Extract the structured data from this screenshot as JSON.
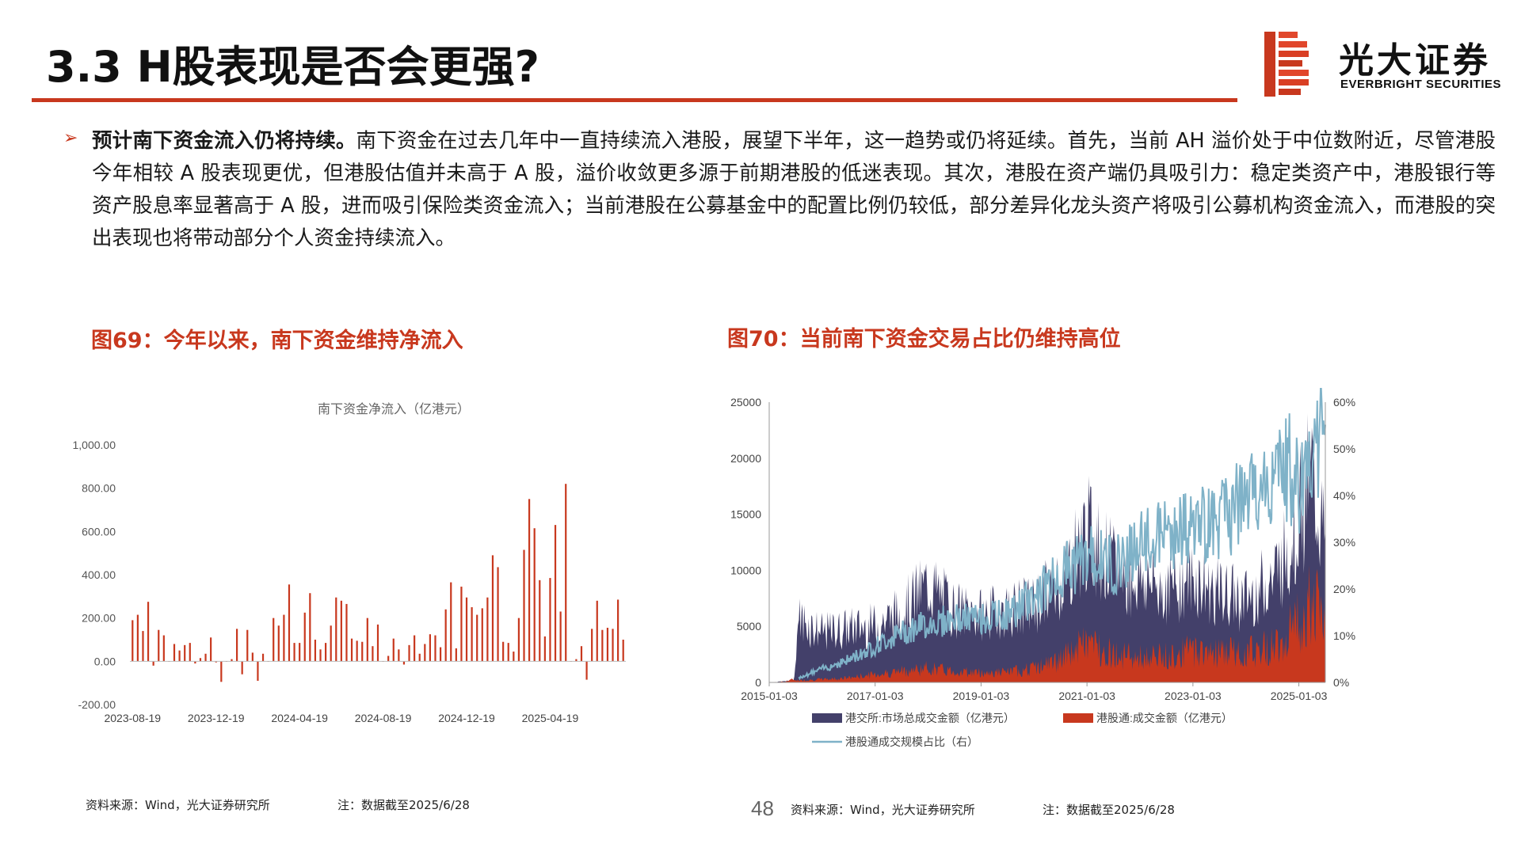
{
  "header": {
    "title": "3.3 H股表现是否会更强?",
    "logo_cn": "光大证券",
    "logo_en": "EVERBRIGHT SECURITIES"
  },
  "colors": {
    "accent": "#c8381e",
    "bar": "#c8381e",
    "navy": "#43406a",
    "ratio": "#7fb2c8"
  },
  "bullet": {
    "lead": "预计南下资金流入仍将持续。",
    "body": "南下资金在过去几年中一直持续流入港股，展望下半年，这一趋势或仍将延续。首先，当前 AH 溢价处于中位数附近，尽管港股今年相较 A 股表现更优，但港股估值并未高于 A 股，溢价收敛更多源于前期港股的低迷表现。其次，港股在资产端仍具吸引力：稳定类资产中，港股银行等资产股息率显著高于 A 股，进而吸引保险类资金流入；当前港股在公募基金中的配置比例仍较低，部分差异化龙头资产将吸引公募机构资金流入，而港股的突出表现也将带动部分个人资金持续流入。"
  },
  "figure69": {
    "caption": "图69：今年以来，南下资金维持净流入",
    "source": "资料来源：Wind，光大证券研究所",
    "note": "注：数据截至2025/6/28"
  },
  "figure70": {
    "caption": "图70：当前南下资金交易占比仍维持高位",
    "source": "资料来源：Wind，光大证券研究所",
    "note": "注：数据截至2025/6/28"
  },
  "page_number": "48",
  "chart_data": [
    {
      "type": "bar",
      "title": "南下资金净流入（亿港元）",
      "ylim": [
        -200,
        1000
      ],
      "yticks": [
        "-200.00",
        "0.00",
        "200.00",
        "400.00",
        "600.00",
        "800.00",
        "1,000.00"
      ],
      "ytick_values": [
        -200,
        0,
        200,
        400,
        600,
        800,
        1000
      ],
      "xticks": [
        "2023-08-19",
        "2023-12-19",
        "2024-04-19",
        "2024-08-19",
        "2024-12-19",
        "2025-04-19"
      ],
      "values": [
        190,
        215,
        140,
        275,
        -20,
        145,
        120,
        0,
        80,
        50,
        75,
        85,
        -10,
        15,
        35,
        110,
        -5,
        -95,
        0,
        10,
        150,
        -60,
        145,
        40,
        -90,
        35,
        0,
        200,
        165,
        215,
        355,
        85,
        85,
        225,
        315,
        100,
        55,
        85,
        165,
        295,
        280,
        265,
        105,
        95,
        90,
        200,
        70,
        170,
        0,
        25,
        105,
        55,
        -15,
        75,
        120,
        35,
        80,
        125,
        120,
        65,
        240,
        365,
        60,
        345,
        295,
        250,
        215,
        245,
        295,
        490,
        435,
        90,
        85,
        45,
        200,
        515,
        750,
        615,
        375,
        115,
        385,
        630,
        230,
        820,
        0,
        10,
        70,
        -85,
        150,
        280,
        145,
        155,
        150,
        285,
        100
      ]
    },
    {
      "type": "area",
      "series": [
        {
          "name": "港交所:市场总成交金额（亿港元）",
          "kind": "area"
        },
        {
          "name": "港股通:成交金额（亿港元）",
          "kind": "area"
        },
        {
          "name": "港股通成交规模占比（右）",
          "kind": "line",
          "axis": "right"
        }
      ],
      "y_left_ticks": [
        "0",
        "5000",
        "10000",
        "15000",
        "20000",
        "25000"
      ],
      "y_left_values": [
        0,
        5000,
        10000,
        15000,
        20000,
        25000
      ],
      "y_right_ticks": [
        "0%",
        "10%",
        "20%",
        "30%",
        "40%",
        "50%",
        "60%"
      ],
      "y_right_values": [
        0,
        10,
        20,
        30,
        40,
        50,
        60
      ],
      "xticks": [
        "2015-01-03",
        "2017-01-03",
        "2019-01-03",
        "2021-01-03",
        "2023-01-03",
        "2025-01-03"
      ],
      "xtick_years": [
        2015,
        2017,
        2019,
        2021,
        2023,
        2025
      ],
      "x_range": [
        2015.0,
        2025.5
      ],
      "total_anchors": [
        [
          2015.0,
          0
        ],
        [
          2015.45,
          400
        ],
        [
          2015.55,
          6200
        ],
        [
          2016.0,
          4800
        ],
        [
          2016.5,
          5200
        ],
        [
          2017.0,
          5500
        ],
        [
          2017.5,
          6800
        ],
        [
          2018.0,
          9500
        ],
        [
          2018.5,
          7000
        ],
        [
          2019.0,
          6500
        ],
        [
          2019.5,
          7000
        ],
        [
          2020.0,
          7500
        ],
        [
          2020.5,
          9800
        ],
        [
          2021.0,
          14500
        ],
        [
          2021.5,
          11000
        ],
        [
          2022.0,
          10000
        ],
        [
          2022.5,
          9000
        ],
        [
          2023.0,
          10000
        ],
        [
          2023.5,
          8500
        ],
        [
          2024.0,
          8000
        ],
        [
          2024.5,
          10000
        ],
        [
          2024.8,
          13000
        ],
        [
          2025.0,
          16000
        ],
        [
          2025.25,
          20000
        ],
        [
          2025.5,
          13000
        ]
      ],
      "sb_anchors": [
        [
          2015.0,
          0
        ],
        [
          2015.3,
          80
        ],
        [
          2015.45,
          300
        ],
        [
          2015.55,
          200
        ],
        [
          2016.0,
          300
        ],
        [
          2016.5,
          450
        ],
        [
          2017.0,
          800
        ],
        [
          2017.5,
          1100
        ],
        [
          2018.0,
          1400
        ],
        [
          2018.5,
          1100
        ],
        [
          2019.0,
          950
        ],
        [
          2019.5,
          1000
        ],
        [
          2020.0,
          1400
        ],
        [
          2020.5,
          2200
        ],
        [
          2021.0,
          4000
        ],
        [
          2021.5,
          2800
        ],
        [
          2022.0,
          2400
        ],
        [
          2022.5,
          2600
        ],
        [
          2023.0,
          3200
        ],
        [
          2023.5,
          3000
        ],
        [
          2024.0,
          3000
        ],
        [
          2024.5,
          3600
        ],
        [
          2024.8,
          5000
        ],
        [
          2025.0,
          6000
        ],
        [
          2025.25,
          8500
        ],
        [
          2025.5,
          5500
        ]
      ],
      "ratio_anchors": [
        [
          2015.55,
          1
        ],
        [
          2016.0,
          3
        ],
        [
          2016.5,
          5
        ],
        [
          2017.0,
          8
        ],
        [
          2017.5,
          11
        ],
        [
          2018.0,
          13
        ],
        [
          2018.5,
          14
        ],
        [
          2019.0,
          14
        ],
        [
          2019.5,
          15
        ],
        [
          2020.0,
          19
        ],
        [
          2020.5,
          24
        ],
        [
          2021.0,
          28
        ],
        [
          2021.5,
          26
        ],
        [
          2022.0,
          30
        ],
        [
          2022.5,
          33
        ],
        [
          2023.0,
          34
        ],
        [
          2023.5,
          36
        ],
        [
          2024.0,
          40
        ],
        [
          2024.5,
          44
        ],
        [
          2024.8,
          48
        ],
        [
          2025.0,
          42
        ],
        [
          2025.2,
          50
        ],
        [
          2025.5,
          55
        ]
      ]
    }
  ]
}
